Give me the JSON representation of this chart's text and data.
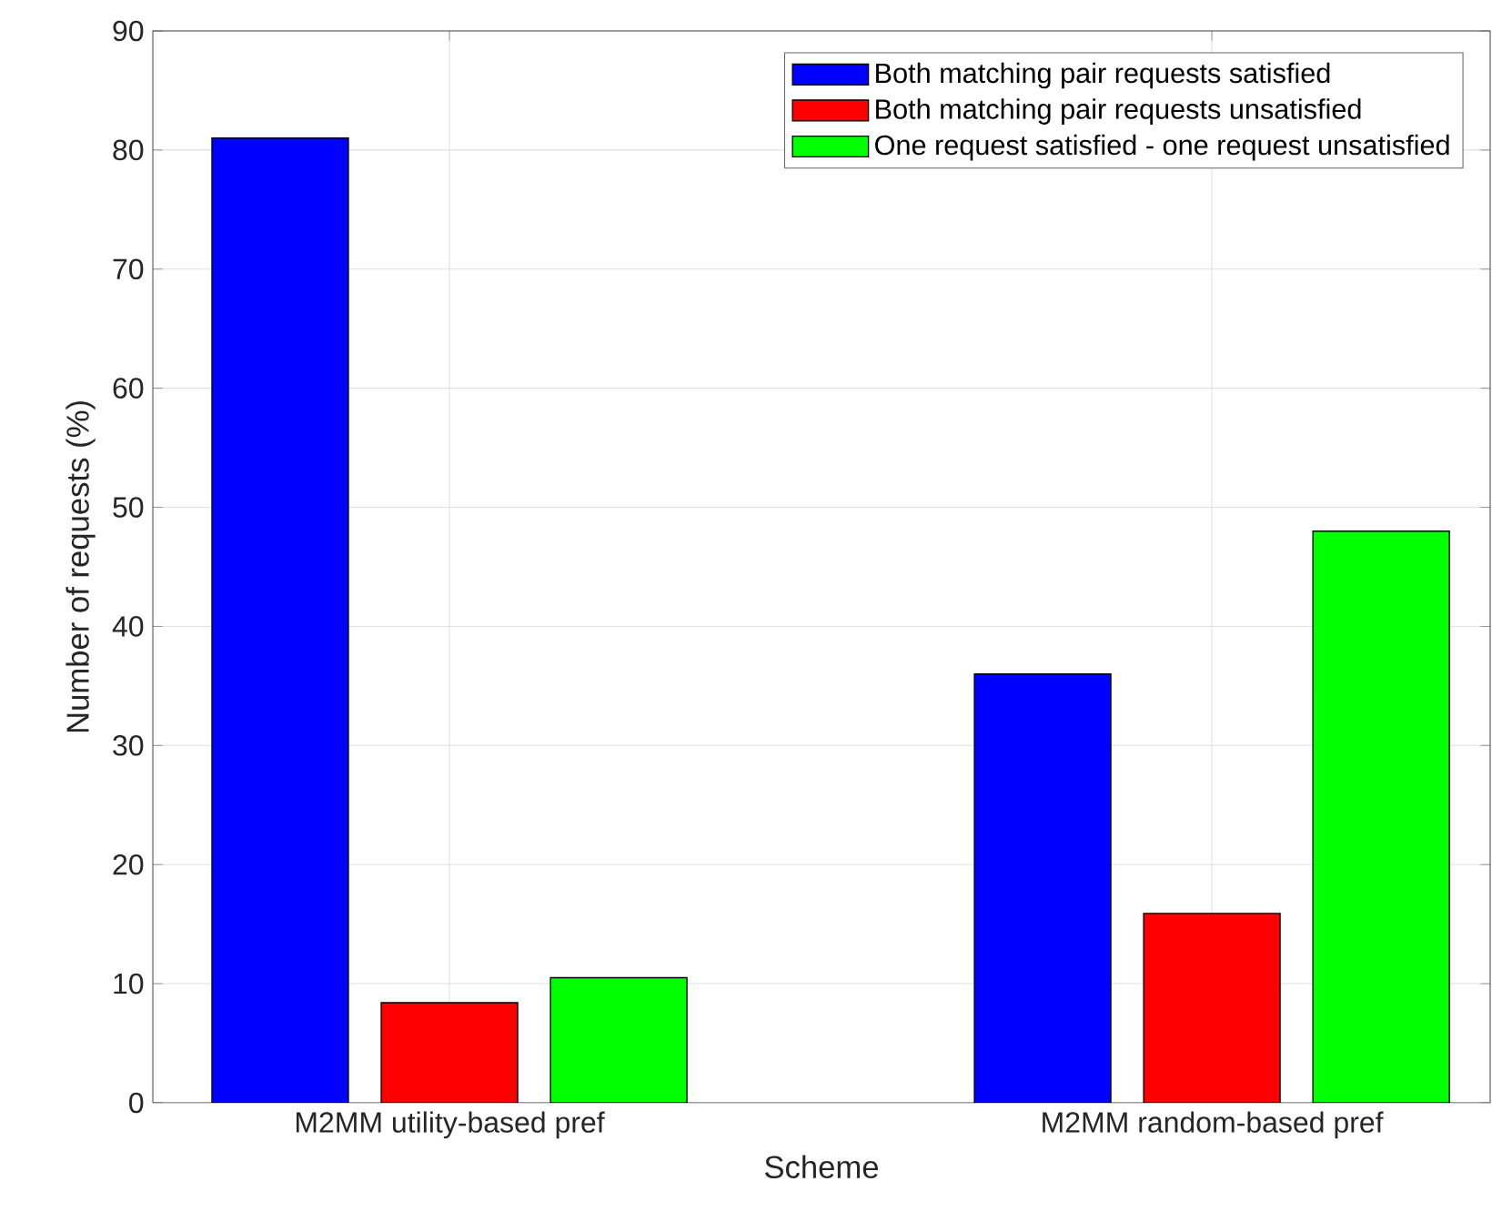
{
  "chart_data": {
    "type": "bar",
    "xlabel": "Scheme",
    "ylabel": "Number of requests (%)",
    "categories": [
      "M2MM utility-based pref",
      "M2MM random-based pref"
    ],
    "series": [
      {
        "name": "Both matching pair requests satisfied",
        "color": "#0000ff",
        "values": [
          81,
          36
        ]
      },
      {
        "name": "Both matching pair requests unsatisfied",
        "color": "#ff0000",
        "values": [
          8.4,
          15.9
        ]
      },
      {
        "name": "One request satisfied - one request unsatisfied",
        "color": "#00ff00",
        "values": [
          10.5,
          48
        ]
      }
    ],
    "ylim": [
      0,
      90
    ],
    "yticks": [
      0,
      10,
      20,
      30,
      40,
      50,
      60,
      70,
      80,
      90
    ],
    "grid": true,
    "legend": "top right"
  }
}
